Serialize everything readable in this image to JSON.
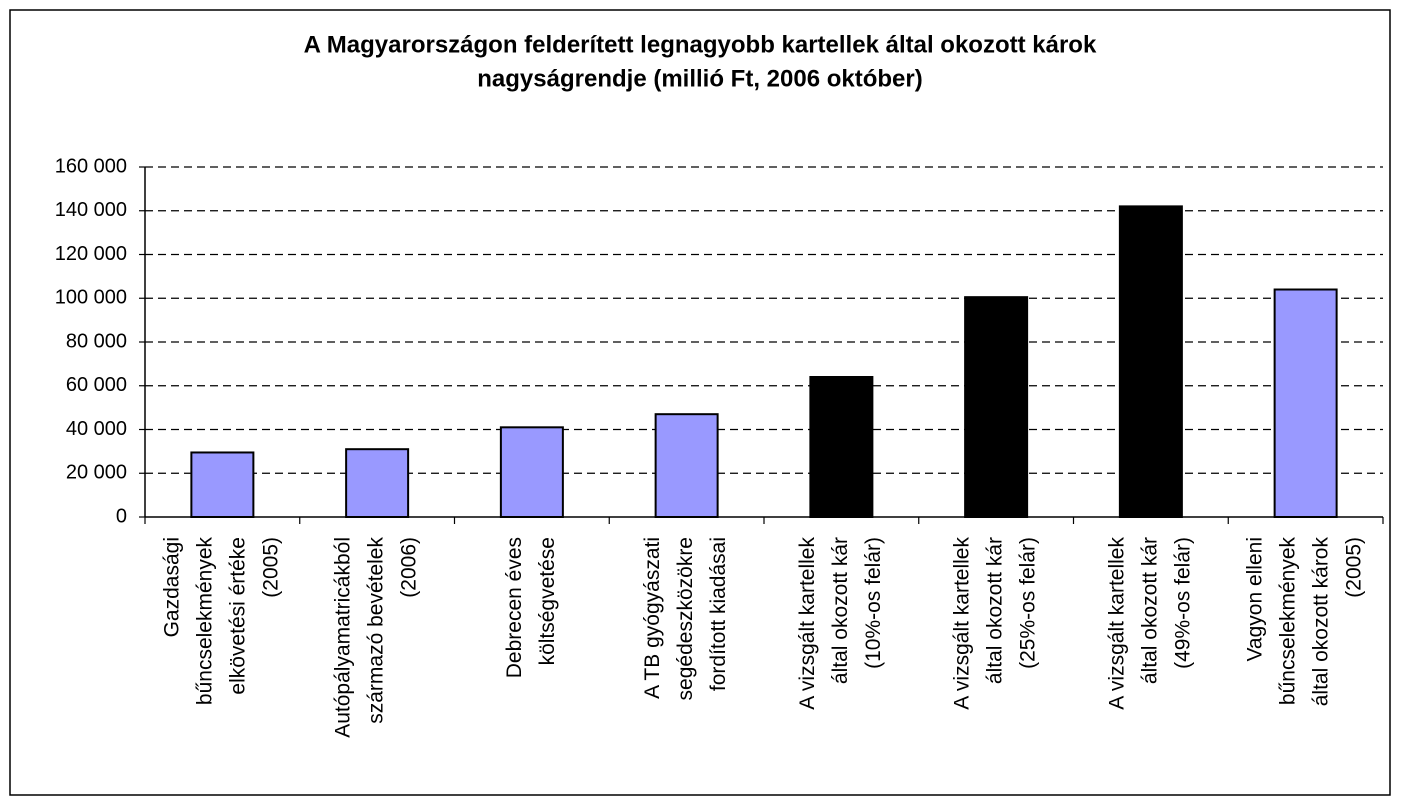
{
  "chart_data": {
    "type": "bar",
    "title": [
      "A Magyarországon felderített legnagyobb kartellek által okozott károk",
      "nagyságrendje (millió Ft, 2006 október)"
    ],
    "categories": [
      [
        "Gazdasági",
        "bűncselekmények",
        "elkövetési értéke",
        "(2005)"
      ],
      [
        "Autópályamatricákból",
        "származó bevételek",
        "(2006)"
      ],
      [
        "Debrecen éves",
        "költségvetése"
      ],
      [
        "A TB gyógyászati",
        "segédeszközökre",
        "fordított kiadásai"
      ],
      [
        "A vizsgált kartellek",
        "által okozott kár",
        "(10%-os felár)"
      ],
      [
        "A vizsgált kartellek",
        "által okozott kár",
        "(25%-os felár)"
      ],
      [
        "A vizsgált kartellek",
        "által okozott kár",
        "(49%-os felár)"
      ],
      [
        "Vagyon elleni",
        "bűncselekmények",
        "által okozott károk",
        "(2005)"
      ]
    ],
    "values": [
      29500,
      31000,
      41000,
      47000,
      64000,
      100500,
      142000,
      104000
    ],
    "colors": [
      "#9999ff",
      "#9999ff",
      "#9999ff",
      "#9999ff",
      "#000000",
      "#000000",
      "#000000",
      "#9999ff"
    ],
    "ylim": [
      0,
      160000
    ],
    "yticks": [
      0,
      {
        "value": 20000,
        "label": "20 000"
      },
      {
        "value": 40000,
        "label": "40 000"
      },
      {
        "value": 60000,
        "label": "60 000"
      },
      {
        "value": 80000,
        "label": "80 000"
      },
      {
        "value": 100000,
        "label": "100 000"
      },
      {
        "value": 120000,
        "label": "120 000"
      },
      {
        "value": 140000,
        "label": "140 000"
      },
      {
        "value": 160000,
        "label": "160 000"
      }
    ],
    "grid": true
  }
}
